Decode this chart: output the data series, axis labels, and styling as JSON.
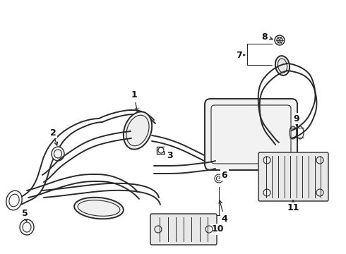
{
  "bg_color": "#ffffff",
  "line_color": "#2a2a2a",
  "label_color": "#111111",
  "fig_width": 4.9,
  "fig_height": 3.6,
  "dpi": 100
}
